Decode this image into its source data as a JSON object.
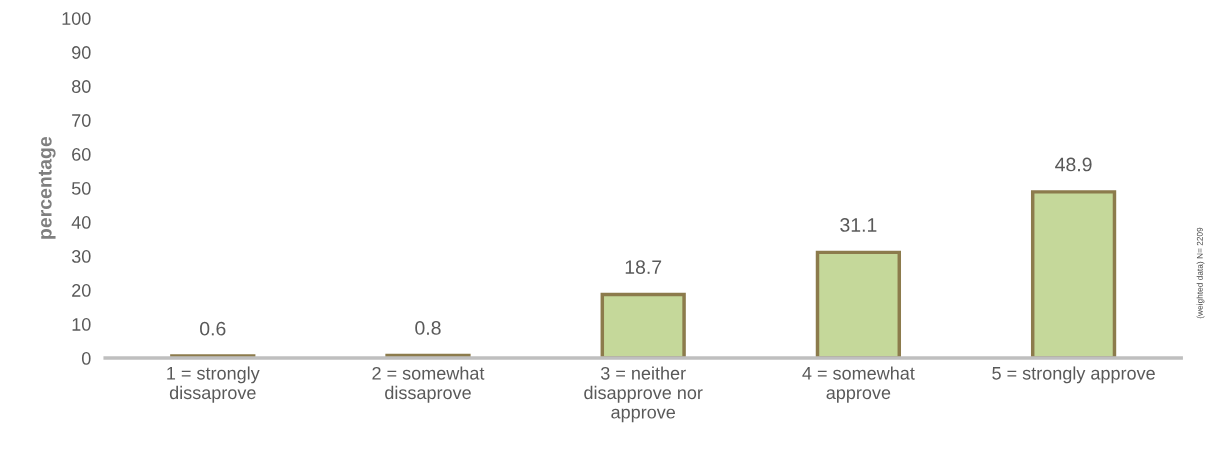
{
  "chart_data": {
    "type": "bar",
    "categories": [
      "1 = strongly\ndissaprove",
      "2 = somewhat\ndissaprove",
      "3 = neither\ndisapprove nor\napprove",
      "4 = somewhat\napprove",
      "5 = strongly approve"
    ],
    "values": [
      0.6,
      0.8,
      18.7,
      31.1,
      48.9
    ],
    "color": "#c5d89a",
    "ylabel": "percentage",
    "ylim": [
      0,
      100
    ],
    "yticks": [
      0,
      10,
      20,
      30,
      40,
      50,
      60,
      70,
      80,
      90,
      100
    ],
    "data_labels": true,
    "grid": false,
    "annotations": [
      "(weighted data) N= 2209"
    ]
  }
}
